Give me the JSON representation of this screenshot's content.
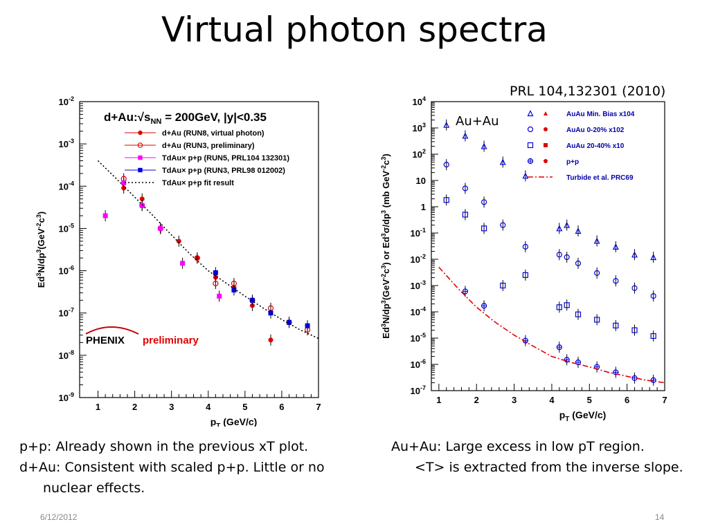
{
  "slide": {
    "title": "Virtual photon spectra",
    "reference": "PRL 104,132301 (2010)",
    "caption_left": [
      "p+p: Already shown in the previous xT plot.",
      "d+Au: Consistent with scaled p+p. Little or no",
      "nuclear effects."
    ],
    "caption_right": [
      "Au+Au: Large excess in low pT region.",
      "<T> is extracted from the inverse slope."
    ],
    "footer_date": "6/12/2012",
    "footer_page": "14"
  },
  "chart_data": [
    {
      "type": "scatter",
      "title": "d+Au: √sNN = 200GeV, |y|<0.35",
      "title_parts": {
        "pre": "d+Au:",
        "s": "s",
        "sub": "NN",
        "post": " = 200GeV, |y|<0.35"
      },
      "xlabel": "pT (GeV/c)",
      "ylabel": "Ed3N/dp3(GeV-2c3)",
      "xlim": [
        0.5,
        7.0
      ],
      "ylim": [
        1e-09,
        0.01
      ],
      "yscale": "log",
      "xticks": [
        "1",
        "2",
        "3",
        "4",
        "5",
        "6",
        "7"
      ],
      "yticks": [
        "10-9",
        "10-8",
        "10-7",
        "10-6",
        "10-5",
        "10-4",
        "10-3",
        "10-2"
      ],
      "logo": "PHENIX",
      "logo_note": "preliminary",
      "legend_position": "top-right",
      "series": [
        {
          "name": "d+Au (RUN8, virtual photon)",
          "color": "#e00000",
          "marker": "circle",
          "x": [
            1.7,
            2.2,
            2.7,
            3.2,
            3.7,
            4.2,
            4.7,
            5.2,
            5.7,
            6.2
          ],
          "y": [
            9e-05,
            5e-05,
            1e-05,
            5e-06,
            2e-06,
            7e-07,
            4e-07,
            1.5e-07,
            2.3e-08,
            6e-08
          ]
        },
        {
          "name": "d+Au (RUN3, preliminary)",
          "color": "#e00000",
          "marker": "open-circle",
          "x": [
            1.7,
            2.2,
            2.7,
            3.7,
            4.2,
            4.7,
            5.2,
            5.7,
            6.2,
            6.7
          ],
          "y": [
            0.00015,
            3.5e-05,
            1e-05,
            2e-06,
            5e-07,
            5e-07,
            2e-07,
            1.3e-07,
            6e-08,
            4e-08
          ]
        },
        {
          "name": "TdAu× p+p (RUN5, PRL104 132301)",
          "color": "#ff00ff",
          "marker": "square",
          "x": [
            1.2,
            1.7,
            2.2,
            2.7,
            3.3,
            4.3
          ],
          "y": [
            2e-05,
            0.00012,
            3.5e-05,
            1e-05,
            1.5e-06,
            2.5e-07
          ]
        },
        {
          "name": "TdAu× p+p (RUN3, PRL98 012002)",
          "color": "#0000dd",
          "marker": "square",
          "x": [
            4.2,
            4.7,
            5.2,
            5.7,
            6.2,
            6.7
          ],
          "y": [
            9e-07,
            3.5e-07,
            2e-07,
            1e-07,
            6e-08,
            5e-08
          ]
        },
        {
          "name": "TdAu× p+p fit result",
          "color": "#000000",
          "marker": "dotted-line",
          "x": [
            1.0,
            1.5,
            2.0,
            2.5,
            3.0,
            3.5,
            4.0,
            4.5,
            5.0,
            5.5,
            6.0,
            6.5,
            7.0
          ],
          "y": [
            0.0004,
            0.00015,
            5.5e-05,
            2e-05,
            7e-06,
            2.5e-06,
            1e-06,
            5e-07,
            2.5e-07,
            1.3e-07,
            7e-08,
            4e-08,
            2.5e-08
          ]
        }
      ]
    },
    {
      "type": "scatter",
      "title": "Au+Au",
      "xlabel": "pT (GeV/c)",
      "ylabel": "Ed3N/dp3(GeV-2c3) or Ed3σ/dp3 (mb GeV-2c3)",
      "xlim": [
        0.8,
        7.0
      ],
      "ylim": [
        1e-07,
        10000.0
      ],
      "yscale": "log",
      "xticks": [
        "1",
        "2",
        "3",
        "4",
        "5",
        "6",
        "7"
      ],
      "yticks": [
        "10-7",
        "10-6",
        "10-5",
        "10-4",
        "10-3",
        "10-2",
        "10-1",
        "1",
        "10",
        "102",
        "103",
        "104"
      ],
      "legend_position": "top-right",
      "series": [
        {
          "name": "AuAu Min. Bias x104",
          "color": "#0000dd",
          "marker": "open-triangle",
          "x": [
            1.2,
            1.7,
            2.2,
            2.7,
            3.3,
            4.2,
            4.4,
            4.7,
            5.2,
            5.7,
            6.2,
            6.7
          ],
          "y": [
            1300,
            500,
            200,
            50,
            15,
            0.15,
            0.2,
            0.12,
            0.05,
            0.03,
            0.015,
            0.012
          ]
        },
        {
          "name": "AuAu 0-20% x102",
          "color": "#0000dd",
          "marker": "open-circle",
          "x": [
            1.2,
            1.7,
            2.2,
            2.7,
            3.3,
            4.2,
            4.4,
            4.7,
            5.2,
            5.7,
            6.2,
            6.7
          ],
          "y": [
            40,
            5,
            1.5,
            0.2,
            0.03,
            0.015,
            0.012,
            0.007,
            0.003,
            0.0015,
            0.0008,
            0.0004
          ]
        },
        {
          "name": "AuAu 20-40% x10",
          "color": "#0000dd",
          "marker": "open-square",
          "x": [
            1.2,
            1.7,
            2.2,
            2.7,
            3.3,
            4.2,
            4.4,
            4.7,
            5.2,
            5.7,
            6.2,
            6.7
          ],
          "y": [
            1.8,
            0.5,
            0.15,
            0.001,
            0.0025,
            0.00015,
            0.00018,
            8e-05,
            5e-05,
            3e-05,
            2e-05,
            1.2e-05
          ]
        },
        {
          "name": "p+p",
          "color": "#0000dd",
          "marker": "crossed-circle",
          "x": [
            1.7,
            2.2,
            3.3,
            4.2,
            4.4,
            4.7,
            5.2,
            5.7,
            6.2,
            6.7
          ],
          "y": [
            0.0006,
            0.00017,
            8e-06,
            4.5e-06,
            1.5e-06,
            1.2e-06,
            8e-07,
            5e-07,
            3e-07,
            2.5e-07
          ]
        },
        {
          "name": "Turbide et al. PRC69",
          "color": "#e00000",
          "marker": "dash-dot-line",
          "x": [
            1.0,
            1.5,
            2.0,
            2.5,
            3.0,
            3.5,
            4.0,
            4.5,
            5.0,
            5.5,
            6.0,
            6.5,
            7.0
          ],
          "y": [
            0.005,
            0.0008,
            0.00015,
            4e-05,
            1.3e-05,
            5e-06,
            2e-06,
            1.2e-06,
            8e-07,
            5e-07,
            3.5e-07,
            2.5e-07,
            2e-07
          ]
        }
      ]
    }
  ]
}
